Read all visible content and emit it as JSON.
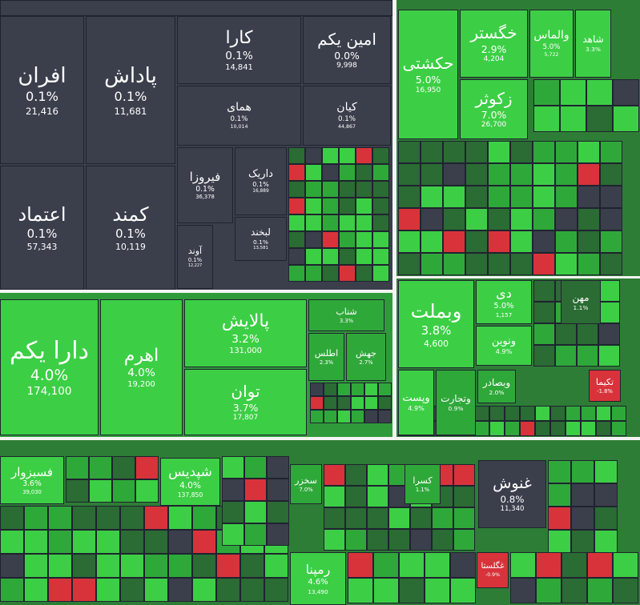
{
  "tiles": [
    {
      "name": "افران",
      "change": "0.1%",
      "price": "21,416"
    },
    {
      "name": "پاداش",
      "change": "0.1%",
      "price": "11,681"
    },
    {
      "name": "کارا",
      "change": "0.1%",
      "price": "14,841"
    },
    {
      "name": "امین یکم",
      "change": "0.0%",
      "price": "9,998"
    },
    {
      "name": "همای",
      "change": "0.1%",
      "price": "10,014"
    },
    {
      "name": "کیان",
      "change": "0.1%",
      "price": "44,867"
    },
    {
      "name": "اعتماد",
      "change": "0.1%",
      "price": "57,343"
    },
    {
      "name": "کمند",
      "change": "0.1%",
      "price": "10,119"
    },
    {
      "name": "فیروزا",
      "change": "0.1%",
      "price": "36,378"
    },
    {
      "name": "داریک",
      "change": "0.1%",
      "price": "16,889"
    },
    {
      "name": "آوند",
      "change": "0.1%",
      "price": "12,227"
    },
    {
      "name": "لبخند",
      "change": "0.1%",
      "price": "13,581"
    },
    {
      "name": "حکشتی",
      "change": "5.0%",
      "price": "16,950"
    },
    {
      "name": "خگستر",
      "change": "2.9%",
      "price": "4,204"
    },
    {
      "name": "والماس",
      "change": "5.0%",
      "price": "5,722"
    },
    {
      "name": "شاهد",
      "change": "3.3%"
    },
    {
      "name": "زکوثر",
      "change": "7.0%",
      "price": "26,700"
    },
    {
      "name": "دارا یکم",
      "change": "4.0%",
      "price": "174,100"
    },
    {
      "name": "اهرم",
      "change": "4.0%",
      "price": "19,200"
    },
    {
      "name": "پالایش",
      "change": "3.2%",
      "price": "131,000"
    },
    {
      "name": "توان",
      "change": "3.7%",
      "price": "17,807"
    },
    {
      "name": "شتاب",
      "change": "3.3%"
    },
    {
      "name": "اطلس",
      "change": "2.3%"
    },
    {
      "name": "جهش",
      "change": "2.7%"
    },
    {
      "name": "وبملت",
      "change": "3.8%",
      "price": "4,600"
    },
    {
      "name": "دی",
      "change": "5.0%",
      "price": "1,157"
    },
    {
      "name": "ونوین",
      "change": "4.9%"
    },
    {
      "name": "مهن",
      "change": "1.1%"
    },
    {
      "name": "وپست",
      "change": "4.9%"
    },
    {
      "name": "وتجارت",
      "change": "0.9%"
    },
    {
      "name": "وبصادر",
      "change": "2.0%"
    },
    {
      "name": "تکیما",
      "change": "-1.8%"
    },
    {
      "name": "فسبزوار",
      "change": "3.6%",
      "price": "39,030"
    },
    {
      "name": "شپدیس",
      "change": "4.0%",
      "price": "137,850"
    },
    {
      "name": "سخزر",
      "change": "7.0%"
    },
    {
      "name": "کسرا",
      "change": "1.1%"
    },
    {
      "name": "رمپنا",
      "change": "4.6%",
      "price": "13,490"
    },
    {
      "name": "غنوش",
      "change": "0.8%",
      "price": "11,340"
    },
    {
      "name": "غگلستا",
      "change": "-0.9%"
    }
  ]
}
